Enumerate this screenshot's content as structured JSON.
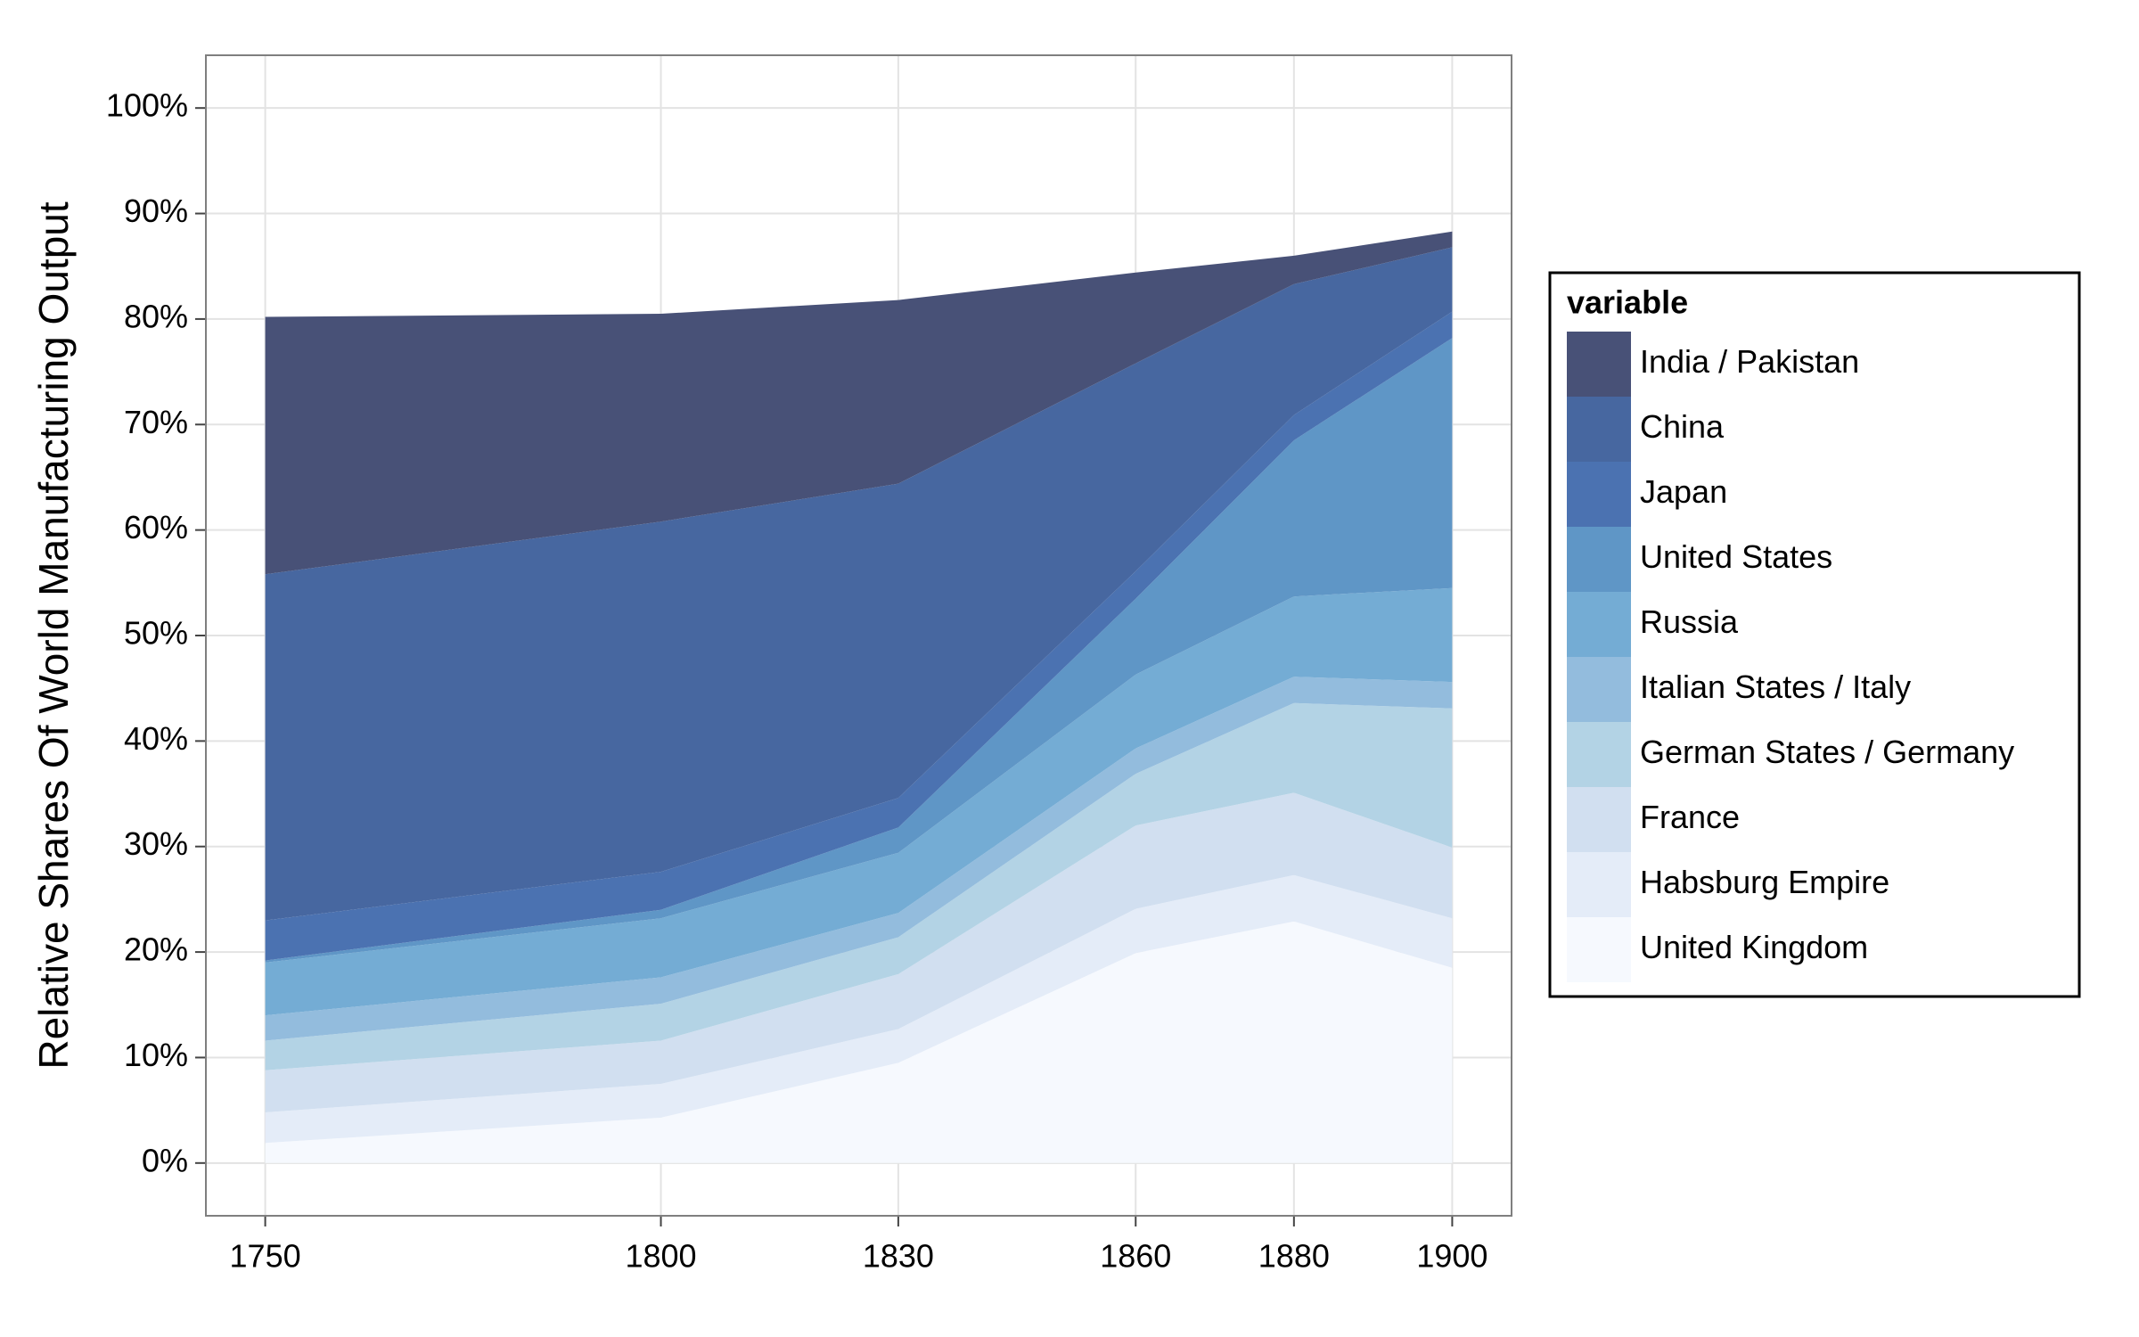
{
  "chart_data": {
    "type": "stacked_area",
    "y_label": "Relative Shares Of World Manufacturing Output",
    "legend_title": "variable",
    "legend": "right",
    "grid": true,
    "x": [
      1750,
      1800,
      1830,
      1860,
      1880,
      1900
    ],
    "xlim": [
      1742.5,
      1907.5
    ],
    "xticks": [
      1750,
      1800,
      1830,
      1860,
      1880,
      1900
    ],
    "ylim": [
      -5,
      105
    ],
    "yticks": [
      {
        "value": 0,
        "label": "0%"
      },
      {
        "value": 10,
        "label": "10%"
      },
      {
        "value": 20,
        "label": "20%"
      },
      {
        "value": 30,
        "label": "30%"
      },
      {
        "value": 40,
        "label": "40%"
      },
      {
        "value": 50,
        "label": "50%"
      },
      {
        "value": 60,
        "label": "60%"
      },
      {
        "value": 70,
        "label": "70%"
      },
      {
        "value": 80,
        "label": "80%"
      },
      {
        "value": 90,
        "label": "90%"
      },
      {
        "value": 100,
        "label": "100%"
      }
    ],
    "series": [
      {
        "name": "United Kingdom",
        "color": "#f6f9fe",
        "values": [
          1.9,
          4.3,
          9.5,
          19.9,
          22.9,
          18.5
        ]
      },
      {
        "name": "Habsburg Empire",
        "color": "#e4ecf8",
        "values": [
          2.9,
          3.2,
          3.2,
          4.2,
          4.4,
          4.7
        ]
      },
      {
        "name": "France",
        "color": "#d1dff0",
        "values": [
          4.0,
          4.1,
          5.2,
          7.9,
          7.8,
          6.7
        ]
      },
      {
        "name": "German States / Germany",
        "color": "#b3d3e5",
        "values": [
          2.8,
          3.5,
          3.5,
          4.9,
          8.5,
          13.2
        ]
      },
      {
        "name": "Italian States / Italy",
        "color": "#93bcdd",
        "values": [
          2.4,
          2.5,
          2.3,
          2.4,
          2.5,
          2.5
        ]
      },
      {
        "name": "Russia",
        "color": "#74acd4",
        "values": [
          5.0,
          5.6,
          5.7,
          7.0,
          7.6,
          8.9
        ]
      },
      {
        "name": "United States",
        "color": "#5f96c6",
        "values": [
          0.2,
          0.8,
          2.4,
          7.2,
          14.8,
          23.7
        ]
      },
      {
        "name": "Japan",
        "color": "#4b72b1",
        "values": [
          3.8,
          3.6,
          2.8,
          2.6,
          2.4,
          2.5
        ]
      },
      {
        "name": "China",
        "color": "#4767a0",
        "values": [
          32.8,
          33.2,
          29.8,
          19.7,
          12.4,
          6.1
        ]
      },
      {
        "name": "India / Pakistan",
        "color": "#485177",
        "values": [
          24.4,
          19.7,
          17.4,
          8.6,
          2.7,
          1.5
        ]
      }
    ]
  }
}
